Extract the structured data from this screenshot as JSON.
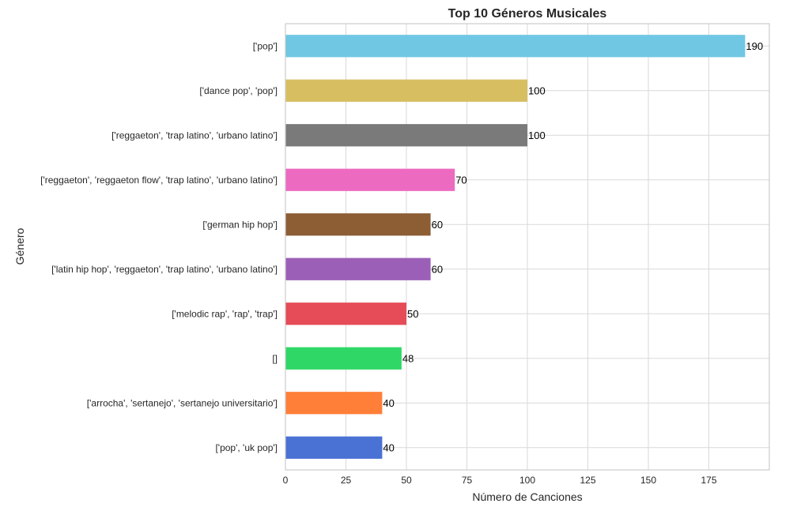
{
  "chart_data": {
    "type": "bar",
    "orientation": "horizontal",
    "title": "Top 10 Géneros Musicales",
    "xlabel": "Número de Canciones",
    "ylabel": "Género",
    "xlim": [
      0,
      200
    ],
    "x_ticks": [
      0,
      25,
      50,
      75,
      100,
      125,
      150,
      175
    ],
    "grid": true,
    "categories": [
      "['pop']",
      "['dance pop', 'pop']",
      "['reggaeton', 'trap latino', 'urbano latino']",
      "['reggaeton', 'reggaeton flow', 'trap latino', 'urbano latino']",
      "['german hip hop']",
      "['latin hip hop', 'reggaeton', 'trap latino', 'urbano latino']",
      "['melodic rap', 'rap', 'trap']",
      "[]",
      "['arrocha', 'sertanejo', 'sertanejo universitario']",
      "['pop', 'uk pop']"
    ],
    "values": [
      190,
      100,
      100,
      70,
      60,
      60,
      50,
      48,
      40,
      40
    ],
    "colors": [
      "#6fc7e3",
      "#d7bf61",
      "#7a7a7a",
      "#ec6ac0",
      "#8d5d34",
      "#9b5fb8",
      "#e64b58",
      "#2fd866",
      "#ff7f38",
      "#4a71d4"
    ],
    "value_labels": [
      "190",
      "100",
      "100",
      "70",
      "60",
      "60",
      "50",
      "48",
      "40",
      "40"
    ]
  }
}
